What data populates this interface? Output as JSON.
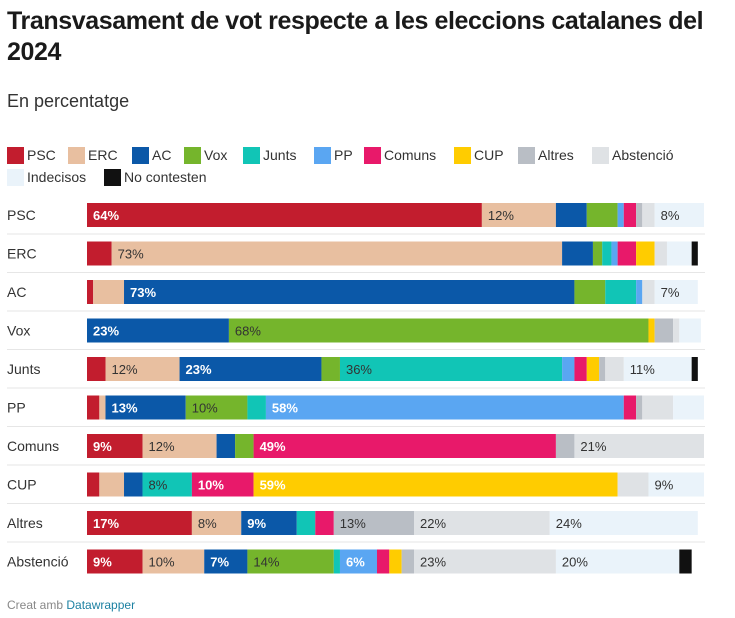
{
  "title": "Transvasament de vot respecte a les eleccions catalanes del 2024",
  "subtitle": "En percentatge",
  "footer": {
    "prefix": "Creat amb",
    "link": "Datawrapper"
  },
  "chart_data": {
    "type": "bar",
    "orientation": "horizontal",
    "stacked": true,
    "legend_position": "top",
    "categories": [
      "PSC",
      "ERC",
      "AC",
      "Vox",
      "Junts",
      "PP",
      "Comuns",
      "CUP",
      "Altres",
      "Abstenció"
    ],
    "series": [
      {
        "name": "PSC",
        "color": "#c21d2e",
        "values": [
          64,
          4,
          1,
          0,
          3,
          2,
          9,
          2,
          17,
          9
        ]
      },
      {
        "name": "ERC",
        "color": "#e8bfa0",
        "values": [
          12,
          73,
          5,
          0,
          12,
          1,
          12,
          4,
          8,
          10
        ]
      },
      {
        "name": "AC",
        "color": "#0b58a8",
        "values": [
          5,
          5,
          73,
          23,
          23,
          13,
          3,
          3,
          9,
          7
        ]
      },
      {
        "name": "Vox",
        "color": "#75b52c",
        "values": [
          5,
          1.5,
          5,
          68,
          3,
          10,
          3,
          0,
          0,
          14
        ]
      },
      {
        "name": "Junts",
        "color": "#11c5b6",
        "values": [
          0,
          1.5,
          5,
          0,
          36,
          3,
          0,
          8,
          3,
          1
        ]
      },
      {
        "name": "PP",
        "color": "#5aa6f2",
        "values": [
          1,
          1,
          1,
          0,
          2,
          58,
          0,
          0,
          0,
          6
        ]
      },
      {
        "name": "Comuns",
        "color": "#e8196a",
        "values": [
          2,
          3,
          0,
          0,
          2,
          2,
          49,
          10,
          3,
          2
        ]
      },
      {
        "name": "CUP",
        "color": "#ffcc00",
        "values": [
          0,
          3,
          0,
          1,
          2,
          0,
          0,
          59,
          0,
          2
        ]
      },
      {
        "name": "Altres",
        "color": "#b9bec5",
        "values": [
          1,
          0,
          0,
          3,
          1,
          1,
          3,
          0,
          13,
          2
        ]
      },
      {
        "name": "Abstenció",
        "color": "#dfe2e5",
        "values": [
          2,
          2,
          2,
          1,
          3,
          5,
          21,
          5,
          22,
          23
        ]
      },
      {
        "name": "Indecisos",
        "color": "#eaf3fa",
        "values": [
          8,
          4,
          7,
          3.5,
          11,
          5,
          0,
          9,
          24,
          20
        ]
      },
      {
        "name": "No contesten",
        "color": "#111111",
        "values": [
          0,
          1,
          0,
          0,
          1,
          0,
          0,
          0,
          0,
          2
        ]
      }
    ],
    "labels": [
      [
        {
          "s": 0,
          "text": "64%"
        },
        {
          "s": 1,
          "text": "12%"
        },
        {
          "s": 10,
          "text": "8%"
        }
      ],
      [
        {
          "s": 1,
          "text": "73%"
        }
      ],
      [
        {
          "s": 2,
          "text": "73%"
        },
        {
          "s": 10,
          "text": "7%"
        }
      ],
      [
        {
          "s": 2,
          "text": "23%"
        },
        {
          "s": 3,
          "text": "68%"
        }
      ],
      [
        {
          "s": 1,
          "text": "12%"
        },
        {
          "s": 2,
          "text": "23%"
        },
        {
          "s": 4,
          "text": "36%"
        },
        {
          "s": 10,
          "text": "11%"
        }
      ],
      [
        {
          "s": 2,
          "text": "13%"
        },
        {
          "s": 3,
          "text": "10%"
        },
        {
          "s": 5,
          "text": "58%"
        }
      ],
      [
        {
          "s": 0,
          "text": "9%"
        },
        {
          "s": 1,
          "text": "12%"
        },
        {
          "s": 6,
          "text": "49%"
        },
        {
          "s": 9,
          "text": "21%"
        }
      ],
      [
        {
          "s": 4,
          "text": "8%"
        },
        {
          "s": 6,
          "text": "10%"
        },
        {
          "s": 7,
          "text": "59%"
        },
        {
          "s": 10,
          "text": "9%"
        }
      ],
      [
        {
          "s": 0,
          "text": "17%"
        },
        {
          "s": 1,
          "text": "8%"
        },
        {
          "s": 2,
          "text": "9%"
        },
        {
          "s": 8,
          "text": "13%"
        },
        {
          "s": 9,
          "text": "22%"
        },
        {
          "s": 10,
          "text": "24%"
        }
      ],
      [
        {
          "s": 0,
          "text": "9%"
        },
        {
          "s": 1,
          "text": "10%"
        },
        {
          "s": 2,
          "text": "7%"
        },
        {
          "s": 3,
          "text": "14%"
        },
        {
          "s": 5,
          "text": "6%"
        },
        {
          "s": 9,
          "text": "23%"
        },
        {
          "s": 10,
          "text": "20%"
        }
      ]
    ],
    "xlim": [
      0,
      100
    ]
  }
}
